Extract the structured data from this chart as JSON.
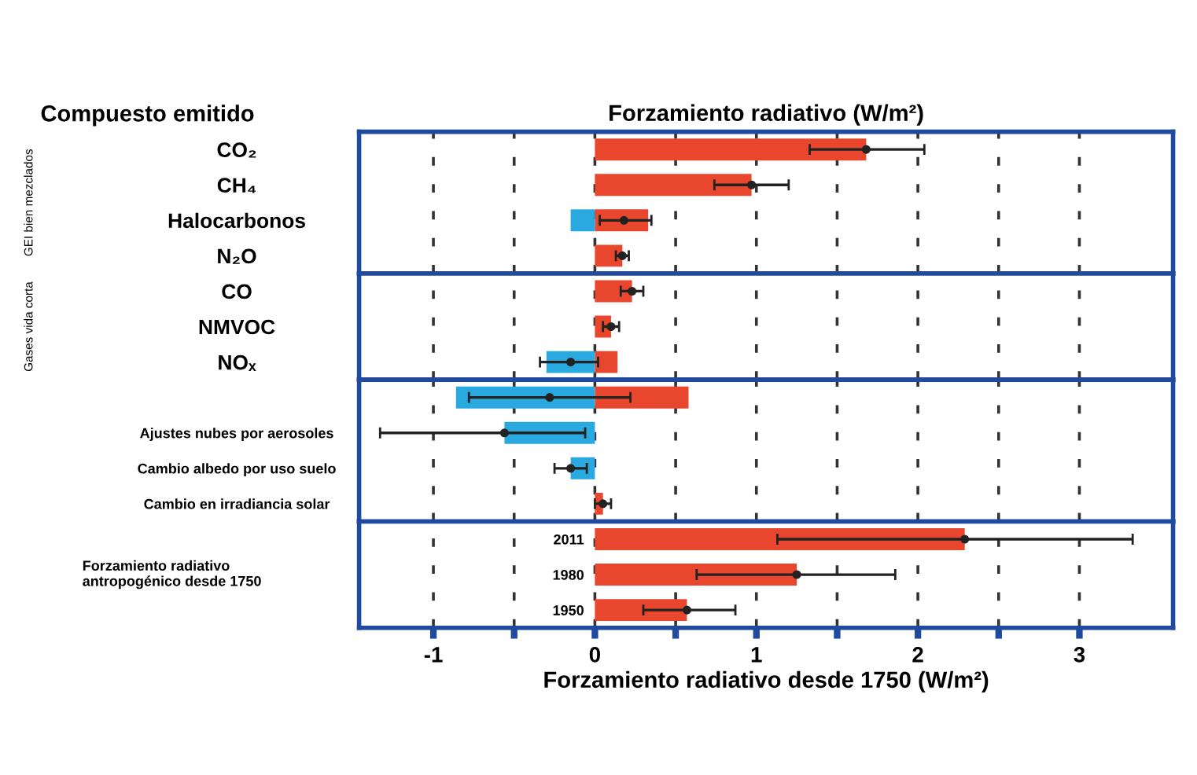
{
  "chart_data": [
    {
      "type": "bar",
      "orientation": "horizontal",
      "stacked": true,
      "title": "Forzamiento radiativo (W/m²)",
      "annotations": [
        "Compuesto emitido",
        "GEI bien mezclados"
      ],
      "categories": [
        "CO₂",
        "CH₄",
        "Halocarbonos",
        "N₂O"
      ],
      "series": [
        {
          "color": "#e8472e",
          "values": [
            1.68,
            0.97,
            0.33,
            0.17
          ]
        },
        {
          "color": "#29a9e0",
          "values": [
            null,
            null,
            -0.15,
            null
          ]
        },
        {
          "type": "scatter",
          "color": "#222222",
          "values": [
            1.68,
            0.97,
            0.18,
            0.17
          ],
          "errors": [
            [
              1.33,
              2.04
            ],
            [
              0.74,
              1.2
            ],
            [
              0.03,
              0.35
            ],
            [
              0.13,
              0.21
            ]
          ]
        }
      ],
      "xlim": [
        -1.46,
        3.58
      ],
      "xticks": [
        {
          "value": -1,
          "label": null
        },
        {
          "value": -0.5,
          "label": null
        },
        {
          "value": 0,
          "label": null
        },
        {
          "value": 0.5,
          "label": null
        },
        {
          "value": 1,
          "label": null
        },
        {
          "value": 1.5,
          "label": null
        },
        {
          "value": 2,
          "label": null
        },
        {
          "value": 2.5,
          "label": null
        },
        {
          "value": 3,
          "label": null
        }
      ],
      "grid": "x",
      "tick_labels": "y",
      "marker": "circle"
    },
    {
      "type": "bar",
      "orientation": "horizontal",
      "stacked": true,
      "annotations": [
        "Gases vida corta"
      ],
      "categories": [
        "CO",
        "NMVOC",
        "NOₓ"
      ],
      "series": [
        {
          "color": "#e8472e",
          "values": [
            0.23,
            0.1,
            0.14
          ]
        },
        {
          "color": "#29a9e0",
          "values": [
            null,
            null,
            -0.3
          ]
        },
        {
          "type": "scatter",
          "color": "#222222",
          "values": [
            0.23,
            0.1,
            -0.15
          ],
          "errors": [
            [
              0.16,
              0.3
            ],
            [
              0.05,
              0.15
            ],
            [
              -0.34,
              0.02
            ]
          ]
        }
      ],
      "xlim": [
        -1.46,
        3.58
      ],
      "xticks": [
        {
          "value": -1,
          "label": null
        },
        {
          "value": -0.5,
          "label": null
        },
        {
          "value": 0,
          "label": null
        },
        {
          "value": 0.5,
          "label": null
        },
        {
          "value": 1,
          "label": null
        },
        {
          "value": 1.5,
          "label": null
        },
        {
          "value": 2,
          "label": null
        },
        {
          "value": 2.5,
          "label": null
        },
        {
          "value": 3,
          "label": null
        }
      ],
      "grid": "x",
      "tick_labels": "y",
      "marker": "circle"
    },
    {
      "type": "bar",
      "orientation": "horizontal",
      "stacked": true,
      "categories": [
        null,
        "Ajustes nubes por aerosoles",
        "Cambio albedo por uso suelo",
        "Cambio en irradiancia solar"
      ],
      "series": [
        {
          "color": "#e8472e",
          "values": [
            0.58,
            null,
            null,
            0.05
          ]
        },
        {
          "color": "#29a9e0",
          "values": [
            -0.86,
            -0.56,
            -0.15,
            null
          ]
        },
        {
          "type": "scatter",
          "color": "#222222",
          "values": [
            -0.28,
            -0.56,
            -0.15,
            0.05
          ],
          "errors": [
            [
              -0.78,
              0.22
            ],
            [
              -1.33,
              -0.06
            ],
            [
              -0.25,
              -0.05
            ],
            [
              0.0,
              0.1
            ]
          ]
        }
      ],
      "xlim": [
        -1.46,
        3.58
      ],
      "xticks": [
        {
          "value": -1,
          "label": null
        },
        {
          "value": -0.5,
          "label": null
        },
        {
          "value": 0,
          "label": null
        },
        {
          "value": 0.5,
          "label": null
        },
        {
          "value": 1,
          "label": null
        },
        {
          "value": 1.5,
          "label": null
        },
        {
          "value": 2,
          "label": null
        },
        {
          "value": 2.5,
          "label": null
        },
        {
          "value": 3,
          "label": null
        }
      ],
      "grid": "x",
      "tick_labels": "y",
      "marker": "circle"
    },
    {
      "type": "bar",
      "orientation": "horizontal",
      "stacked": true,
      "xlabel": "Forzamiento radiativo desde 1750 (W/m²)",
      "annotations": [
        "Forzamiento radiativo\nantropogénico desde 1750"
      ],
      "categories": [
        "2011",
        "1980",
        "1950"
      ],
      "series": [
        {
          "color": "#e8472e",
          "values": [
            2.29,
            1.25,
            0.57
          ]
        },
        {
          "type": "scatter",
          "color": "#222222",
          "values": [
            2.29,
            1.25,
            0.57
          ],
          "errors": [
            [
              1.13,
              3.33
            ],
            [
              0.63,
              1.86
            ],
            [
              0.3,
              0.87
            ]
          ]
        }
      ],
      "xlim": [
        -1.46,
        3.58
      ],
      "xticks": [
        -1,
        {
          "value": -0.5,
          "label": null
        },
        0,
        {
          "value": 0.5,
          "label": null
        },
        1,
        {
          "value": 1.5,
          "label": null
        },
        2,
        {
          "value": 2.5,
          "label": null
        },
        3
      ],
      "grid": "x",
      "marker": "circle"
    }
  ]
}
